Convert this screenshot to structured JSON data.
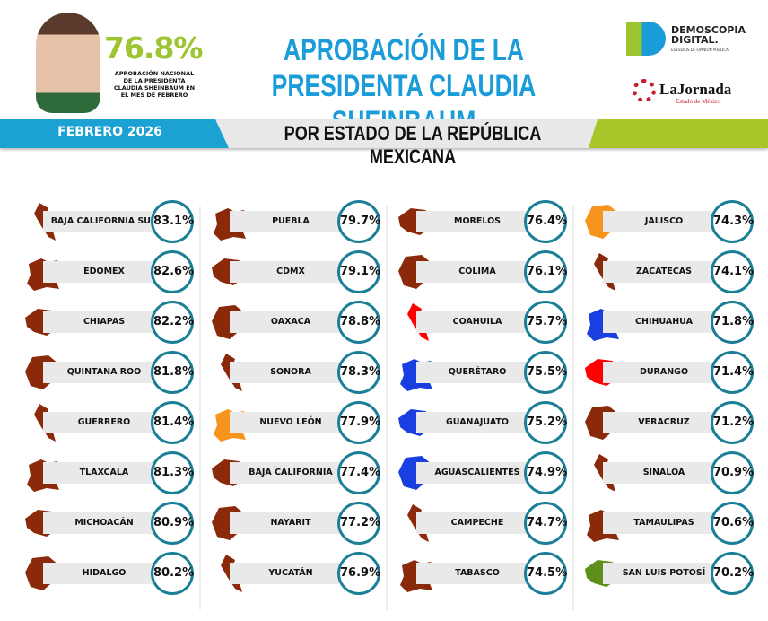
{
  "header": {
    "national_pct": "76.8%",
    "national_sub": "APROBACIÓN NACIONAL DE LA PRESIDENTA CLAUDIA SHEINBAUM EN EL MES DE FEBRERO",
    "title_line1": "APROBACIÓN DE LA",
    "title_line2": "PRESIDENTA CLAUDIA SHEINBAUM"
  },
  "logos": {
    "demoscopia": "DEMOSCOPIA DIGITAL.",
    "demoscopia_sub": "ESTUDIOS DE OPINIÓN PÚBLICA",
    "jornada": "LaJornada",
    "jornada_sub": "Estado de México"
  },
  "banner": {
    "date": "FEBRERO 2026",
    "subtitle": "POR ESTADO DE LA REPÚBLICA MEXICANA"
  },
  "colors": {
    "brown": "#8b2a0a",
    "orange": "#f7941d",
    "red": "#ff0000",
    "blue": "#1a3fe0",
    "green": "#5e8f1a",
    "ring": "#1a7f96"
  },
  "columns": [
    [
      {
        "name": "BAJA CALIFORNIA SUR",
        "value": "83.1%",
        "color": "brown"
      },
      {
        "name": "EDOMEX",
        "value": "82.6%",
        "color": "brown"
      },
      {
        "name": "CHIAPAS",
        "value": "82.2%",
        "color": "brown"
      },
      {
        "name": "QUINTANA ROO",
        "value": "81.8%",
        "color": "brown"
      },
      {
        "name": "GUERRERO",
        "value": "81.4%",
        "color": "brown"
      },
      {
        "name": "TLAXCALA",
        "value": "81.3%",
        "color": "brown"
      },
      {
        "name": "MICHOACÁN",
        "value": "80.9%",
        "color": "brown"
      },
      {
        "name": "HIDALGO",
        "value": "80.2%",
        "color": "brown"
      }
    ],
    [
      {
        "name": "PUEBLA",
        "value": "79.7%",
        "color": "brown"
      },
      {
        "name": "CDMX",
        "value": "79.1%",
        "color": "brown"
      },
      {
        "name": "OAXACA",
        "value": "78.8%",
        "color": "brown"
      },
      {
        "name": "SONORA",
        "value": "78.3%",
        "color": "brown"
      },
      {
        "name": "NUEVO LEÓN",
        "value": "77.9%",
        "color": "orange"
      },
      {
        "name": "BAJA CALIFORNIA",
        "value": "77.4%",
        "color": "brown"
      },
      {
        "name": "NAYARIT",
        "value": "77.2%",
        "color": "brown"
      },
      {
        "name": "YUCATÁN",
        "value": "76.9%",
        "color": "brown"
      }
    ],
    [
      {
        "name": "MORELOS",
        "value": "76.4%",
        "color": "brown"
      },
      {
        "name": "COLIMA",
        "value": "76.1%",
        "color": "brown"
      },
      {
        "name": "COAHUILA",
        "value": "75.7%",
        "color": "red"
      },
      {
        "name": "QUERÉTARO",
        "value": "75.5%",
        "color": "blue"
      },
      {
        "name": "GUANAJUATO",
        "value": "75.2%",
        "color": "blue"
      },
      {
        "name": "AGUASCALIENTES",
        "value": "74.9%",
        "color": "blue"
      },
      {
        "name": "CAMPECHE",
        "value": "74.7%",
        "color": "brown"
      },
      {
        "name": "TABASCO",
        "value": "74.5%",
        "color": "brown"
      }
    ],
    [
      {
        "name": "JALISCO",
        "value": "74.3%",
        "color": "orange"
      },
      {
        "name": "ZACATECAS",
        "value": "74.1%",
        "color": "brown"
      },
      {
        "name": "CHIHUAHUA",
        "value": "71.8%",
        "color": "blue"
      },
      {
        "name": "DURANGO",
        "value": "71.4%",
        "color": "red"
      },
      {
        "name": "VERACRUZ",
        "value": "71.2%",
        "color": "brown"
      },
      {
        "name": "SINALOA",
        "value": "70.9%",
        "color": "brown"
      },
      {
        "name": "TAMAULIPAS",
        "value": "70.6%",
        "color": "brown"
      },
      {
        "name": "SAN LUIS POTOSÍ",
        "value": "70.2%",
        "color": "green"
      }
    ]
  ]
}
